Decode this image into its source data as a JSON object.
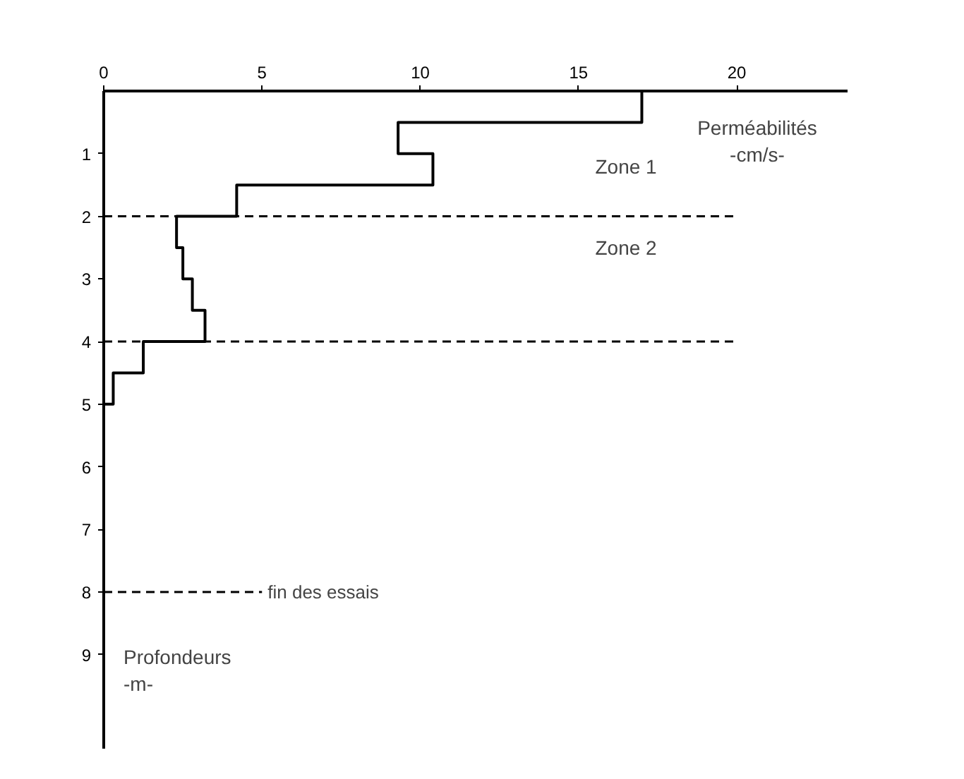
{
  "chart_data": {
    "type": "step",
    "orientation": "horizontal",
    "xlabel": "Perméabilités\n-cm/s-",
    "ylabel": "Profondeurs\n-m-",
    "xlim": [
      0,
      23.5
    ],
    "xticks": [
      0,
      5,
      10,
      15,
      20
    ],
    "ylim": [
      10.5,
      0
    ],
    "yticks": [
      1,
      2,
      3,
      4,
      5,
      6,
      7,
      8,
      9
    ],
    "series": [
      {
        "color": "#000000",
        "x": [
          0,
          0.5,
          1,
          1.5,
          2,
          2.5,
          3,
          3.5,
          4,
          4.5,
          5
        ],
        "values": [
          17,
          9.3,
          10.4,
          4.2,
          2.3,
          2.5,
          2.8,
          3.2,
          1.25,
          0.3,
          0
        ]
      }
    ],
    "ref_lines": [
      {
        "axis": "y",
        "value": 2,
        "line_style": "dashed",
        "color": "#000000"
      },
      {
        "axis": "y",
        "value": 4,
        "line_style": "dashed",
        "color": "#000000"
      },
      {
        "axis": "y",
        "value": 8,
        "label": "fin des essais",
        "line_style": "dashed",
        "color": "#000000"
      }
    ],
    "annotations": [
      "Zone 1",
      "Zone 2"
    ],
    "grid": false
  }
}
